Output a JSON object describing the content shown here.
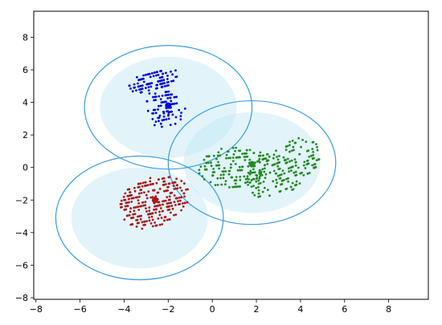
{
  "chart_data": {
    "type": "scatter",
    "title": "",
    "xlabel": "",
    "ylabel": "",
    "xlim": [
      -8.1,
      9.8
    ],
    "ylim": [
      -8.1,
      9.6
    ],
    "xticks": [
      -8,
      -6,
      -4,
      -2,
      0,
      2,
      4,
      6,
      8
    ],
    "yticks": [
      -8,
      -6,
      -4,
      -2,
      0,
      2,
      4,
      6,
      8
    ],
    "xtick_labels": [
      "−8",
      "−6",
      "−4",
      "−2",
      "0",
      "2",
      "4",
      "6",
      "8"
    ],
    "ytick_labels": [
      "−8",
      "−6",
      "−4",
      "−2",
      "0",
      "2",
      "4",
      "6",
      "8"
    ],
    "grid": false,
    "legend": "none",
    "clusters": [
      {
        "color": "#0000dd",
        "center": [
          -2.0,
          3.8
        ],
        "blobs": [
          {
            "x": [
              -3.8,
              -1.6
            ],
            "y": [
              4.6,
              5.9
            ],
            "n": 110,
            "tilt": 0.35
          },
          {
            "x": [
              -3.0,
              -1.6
            ],
            "y": [
              3.2,
              4.6
            ],
            "n": 70,
            "tilt": 0.2
          },
          {
            "x": [
              -2.8,
              -1.1
            ],
            "y": [
              2.6,
              3.5
            ],
            "n": 35,
            "tilt": 0.3
          }
        ]
      },
      {
        "color": "#228b22",
        "center": [
          1.8,
          0.2
        ],
        "blobs": [
          {
            "x": [
              -0.6,
              2.5
            ],
            "y": [
              -1.2,
              1.2
            ],
            "n": 180,
            "tilt": 0.1
          },
          {
            "x": [
              1.5,
              4.9
            ],
            "y": [
              -1.6,
              1.5
            ],
            "n": 260,
            "tilt": 0.55
          }
        ]
      },
      {
        "color": "#aa1a1a",
        "center": [
          -2.6,
          -2.0
        ],
        "blobs": [
          {
            "x": [
              -4.2,
              -1.1
            ],
            "y": [
              -3.6,
              -0.6
            ],
            "n": 320,
            "tilt": 0.3
          }
        ]
      }
    ],
    "regions": [
      {
        "cx": -2.0,
        "cy": 3.7,
        "rx": 3.8,
        "ry": 3.8,
        "inner_rx": 3.1,
        "inner_ry": 3.1,
        "edge": "#3a9ee8",
        "fill": "#bfe6f5"
      },
      {
        "cx": 1.8,
        "cy": 0.3,
        "rx": 3.8,
        "ry": 3.8,
        "inner_rx": 3.1,
        "inner_ry": 3.1,
        "edge": "#3a9ee8",
        "fill": "#bfe6f5"
      },
      {
        "cx": -3.3,
        "cy": -3.1,
        "rx": 3.8,
        "ry": 3.8,
        "inner_rx": 3.1,
        "inner_ry": 3.1,
        "edge": "#3a9ee8",
        "fill": "#bfe6f5"
      }
    ]
  }
}
